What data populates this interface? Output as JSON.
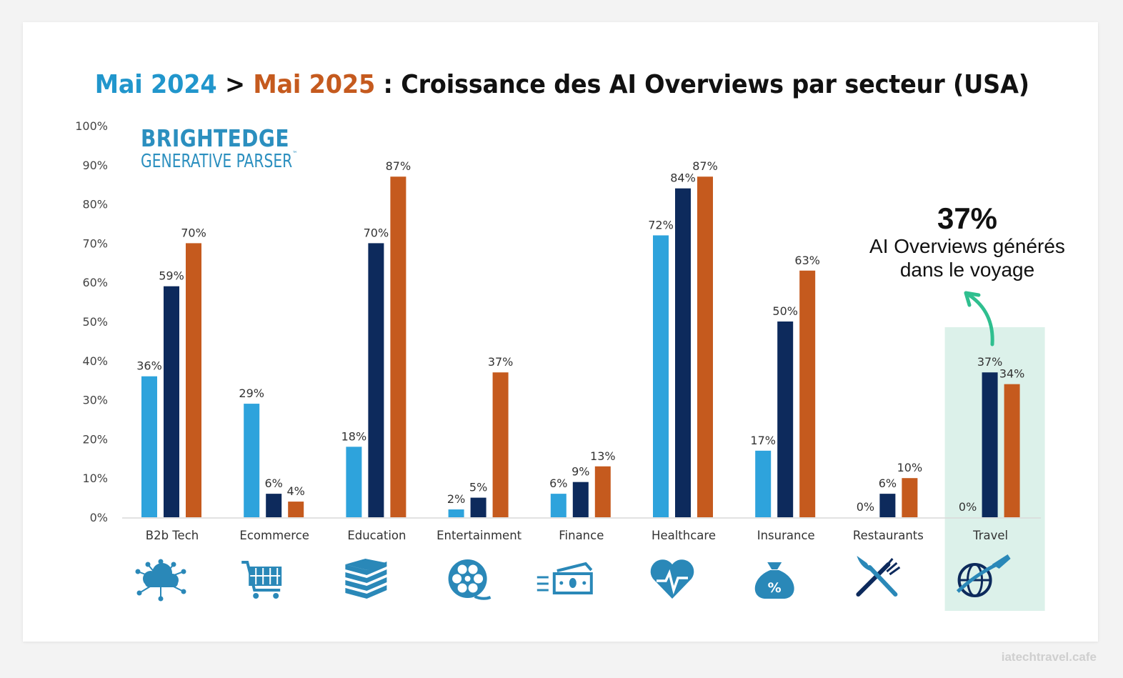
{
  "title": {
    "part1": "Mai 2024",
    "sep": " > ",
    "part2": "Mai 2025",
    "rest": " : Croissance des AI Overviews par secteur (USA)"
  },
  "logo": {
    "line1": "BRIGHTEDGE",
    "line2": "GENERATIVE PARSER",
    "tm": "™"
  },
  "callout": {
    "value": "37%",
    "line1": "AI Overviews générés",
    "line2": "dans le voyage"
  },
  "footer": "iatechtravel.cafe",
  "colors": {
    "light_blue": "#2ea3dc",
    "navy": "#0d2a5c",
    "orange": "#c55a1e",
    "highlight": "#dcf1ea",
    "arrow": "#2fbf8f",
    "icon": "#2a88b8"
  },
  "icons": [
    "cloud-network-icon",
    "shopping-cart-icon",
    "books-icon",
    "film-reel-icon",
    "cash-icon",
    "heart-pulse-icon",
    "money-bag-percent-icon",
    "fork-knife-icon",
    "globe-plane-icon"
  ],
  "chart_data": {
    "type": "bar",
    "categories": [
      "B2b Tech",
      "Ecommerce",
      "Education",
      "Entertainment",
      "Finance",
      "Healthcare",
      "Insurance",
      "Restaurants",
      "Travel"
    ],
    "series": [
      {
        "values": [
          36,
          29,
          18,
          2,
          6,
          72,
          17,
          0,
          0
        ],
        "color": "#2ea3dc"
      },
      {
        "values": [
          59,
          6,
          70,
          5,
          9,
          84,
          50,
          6,
          37
        ],
        "color": "#0d2a5c"
      },
      {
        "values": [
          70,
          4,
          87,
          37,
          13,
          87,
          63,
          10,
          34
        ],
        "color": "#c55a1e"
      }
    ],
    "ylim": [
      0,
      100
    ],
    "yticks": [
      "0%",
      "10%",
      "20%",
      "30%",
      "40%",
      "50%",
      "60%",
      "70%",
      "80%",
      "90%",
      "100%"
    ],
    "value_suffix": "%",
    "highlighted_category": "Travel",
    "grid": false,
    "legend": "none"
  }
}
